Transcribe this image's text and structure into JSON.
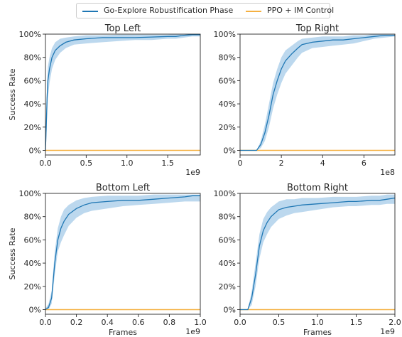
{
  "legend": [
    {
      "label": "Go-Explore Robustification Phase",
      "color": "#1f77b4"
    },
    {
      "label": "PPO + IM Control",
      "color": "#f5b041"
    }
  ],
  "band_color": "#a6cbe8",
  "chart_data": [
    {
      "type": "line",
      "title": "Top Left",
      "xlabel": "",
      "ylabel": "Success Rate",
      "x_unit_label": "1e9",
      "xlim": [
        0,
        1.9
      ],
      "ylim": [
        -4,
        100
      ],
      "xticks": [
        0.0,
        0.5,
        1.0,
        1.5
      ],
      "xtick_labels": [
        "0.0",
        "0.5",
        "1.0",
        "1.5"
      ],
      "yticks": [
        0,
        20,
        40,
        60,
        80,
        100
      ],
      "ytick_labels": [
        "0%",
        "20%",
        "40%",
        "60%",
        "80%",
        "100%"
      ],
      "series": [
        {
          "name": "Go-Explore Robustification Phase",
          "x": [
            0,
            0.01,
            0.02,
            0.03,
            0.05,
            0.08,
            0.12,
            0.18,
            0.25,
            0.35,
            0.5,
            0.7,
            0.9,
            1.1,
            1.3,
            1.5,
            1.6,
            1.7,
            1.8,
            1.9
          ],
          "y": [
            0,
            20,
            45,
            60,
            70,
            80,
            86,
            90,
            93,
            95,
            96,
            97,
            97,
            97,
            97.5,
            98,
            98,
            99,
            99.5,
            99.5
          ],
          "lower": [
            0,
            8,
            30,
            45,
            58,
            70,
            78,
            84,
            88,
            91,
            92,
            93,
            94,
            95,
            95,
            96,
            96,
            97,
            98,
            98
          ],
          "upper": [
            2,
            30,
            58,
            72,
            80,
            88,
            93,
            96,
            97,
            98,
            99,
            99,
            99.5,
            99.5,
            99.5,
            99.5,
            100,
            100,
            100,
            100
          ]
        },
        {
          "name": "PPO + IM Control",
          "x": [
            0,
            1.9
          ],
          "y": [
            0,
            0
          ]
        }
      ]
    },
    {
      "type": "line",
      "title": "Top Right",
      "xlabel": "",
      "ylabel": "",
      "x_unit_label": "1e8",
      "xlim": [
        0,
        7.5
      ],
      "ylim": [
        -4,
        100
      ],
      "xticks": [
        0,
        2,
        4,
        6
      ],
      "xtick_labels": [
        "0",
        "2",
        "4",
        "6"
      ],
      "yticks": [
        0,
        20,
        40,
        60,
        80,
        100
      ],
      "ytick_labels": [
        "0%",
        "20%",
        "40%",
        "60%",
        "80%",
        "100%"
      ],
      "series": [
        {
          "name": "Go-Explore Robustification Phase",
          "x": [
            0,
            0.8,
            1.0,
            1.2,
            1.4,
            1.6,
            1.8,
            2.0,
            2.2,
            2.5,
            2.8,
            3.0,
            3.5,
            4.0,
            4.5,
            5.0,
            5.5,
            6.0,
            6.5,
            7.0,
            7.5
          ],
          "y": [
            0,
            0,
            5,
            15,
            30,
            48,
            60,
            70,
            77,
            83,
            88,
            91,
            93,
            94,
            95,
            95,
            96,
            97,
            98,
            99,
            99
          ],
          "lower": [
            0,
            0,
            2,
            8,
            20,
            36,
            48,
            58,
            66,
            73,
            80,
            84,
            88,
            89,
            90,
            91,
            92,
            94,
            96,
            97,
            98
          ],
          "upper": [
            0,
            0,
            8,
            22,
            40,
            58,
            70,
            80,
            86,
            90,
            94,
            96,
            97,
            98,
            98,
            98,
            99,
            99,
            100,
            100,
            100
          ]
        },
        {
          "name": "PPO + IM Control",
          "x": [
            0,
            7.5
          ],
          "y": [
            0,
            0
          ]
        }
      ]
    },
    {
      "type": "line",
      "title": "Bottom Left",
      "xlabel": "Frames",
      "ylabel": "Success Rate",
      "x_unit_label": "1e9",
      "xlim": [
        0,
        1.0
      ],
      "ylim": [
        -4,
        100
      ],
      "xticks": [
        0.0,
        0.2,
        0.4,
        0.6,
        0.8,
        1.0
      ],
      "xtick_labels": [
        "0.0",
        "0.2",
        "0.4",
        "0.6",
        "0.8",
        "1.0"
      ],
      "yticks": [
        0,
        20,
        40,
        60,
        80,
        100
      ],
      "ytick_labels": [
        "0%",
        "20%",
        "40%",
        "60%",
        "80%",
        "100%"
      ],
      "series": [
        {
          "name": "Go-Explore Robustification Phase",
          "x": [
            0,
            0.02,
            0.04,
            0.06,
            0.08,
            0.1,
            0.12,
            0.15,
            0.2,
            0.25,
            0.3,
            0.4,
            0.5,
            0.6,
            0.7,
            0.8,
            0.9,
            0.95,
            1.0
          ],
          "y": [
            0,
            2,
            10,
            40,
            60,
            70,
            76,
            82,
            87,
            90,
            92,
            93,
            94,
            94,
            95,
            96,
            97,
            98,
            98
          ],
          "lower": [
            0,
            0,
            5,
            30,
            50,
            58,
            64,
            72,
            79,
            83,
            85,
            87,
            89,
            90,
            91,
            92,
            93,
            93,
            93
          ],
          "upper": [
            1,
            5,
            16,
            50,
            70,
            80,
            86,
            90,
            94,
            96,
            97,
            98,
            98,
            98,
            99,
            99,
            99,
            99,
            99
          ]
        },
        {
          "name": "PPO + IM Control",
          "x": [
            0,
            1.0
          ],
          "y": [
            0,
            0
          ]
        }
      ]
    },
    {
      "type": "line",
      "title": "Bottom Right",
      "xlabel": "Frames",
      "ylabel": "",
      "x_unit_label": "1e9",
      "xlim": [
        0,
        2.0
      ],
      "ylim": [
        -4,
        100
      ],
      "xticks": [
        0.0,
        0.5,
        1.0,
        1.5,
        2.0
      ],
      "xtick_labels": [
        "0.0",
        "0.5",
        "1.0",
        "1.5",
        "2.0"
      ],
      "yticks": [
        0,
        20,
        40,
        60,
        80,
        100
      ],
      "ytick_labels": [
        "0%",
        "20%",
        "40%",
        "60%",
        "80%",
        "100%"
      ],
      "series": [
        {
          "name": "Go-Explore Robustification Phase",
          "x": [
            0,
            0.1,
            0.15,
            0.2,
            0.25,
            0.3,
            0.35,
            0.4,
            0.5,
            0.6,
            0.7,
            0.8,
            1.0,
            1.2,
            1.4,
            1.5,
            1.7,
            1.8,
            1.9,
            2.0
          ],
          "y": [
            0,
            0,
            10,
            30,
            55,
            68,
            75,
            80,
            86,
            88,
            89,
            90,
            91,
            92,
            93,
            93,
            94,
            94,
            95,
            96
          ],
          "lower": [
            0,
            0,
            4,
            20,
            44,
            58,
            65,
            71,
            78,
            81,
            83,
            84,
            86,
            88,
            89,
            89,
            90,
            90,
            91,
            91
          ],
          "upper": [
            0,
            0,
            16,
            40,
            65,
            78,
            84,
            88,
            93,
            95,
            95,
            96,
            96,
            97,
            97,
            97,
            98,
            98,
            99,
            99
          ]
        },
        {
          "name": "PPO + IM Control",
          "x": [
            0,
            2.0
          ],
          "y": [
            0,
            0
          ]
        }
      ]
    }
  ]
}
